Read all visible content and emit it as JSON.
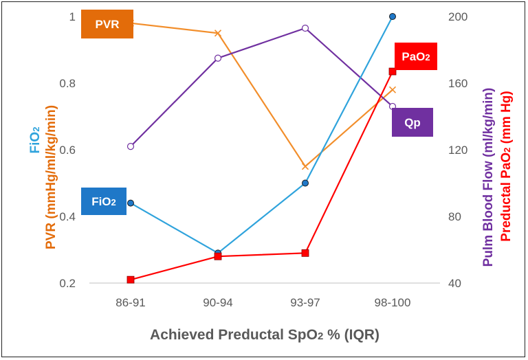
{
  "chart_data": {
    "type": "line",
    "categories": [
      "86-91",
      "90-94",
      "93-97",
      "98-100"
    ],
    "xlabel_parts": [
      "Achieved Preductal SpO",
      "2",
      " % (IQR)"
    ],
    "left_axis": {
      "ylim": [
        0.2,
        1.0
      ],
      "ticks": [
        "0.2",
        "0.4",
        "0.6",
        "0.8",
        "1"
      ],
      "label_fio2": [
        "FiO",
        "2"
      ],
      "label_pvr": "PVR (mmHg/ml/kg/min)"
    },
    "right_axis": {
      "ylim": [
        40,
        200
      ],
      "ticks": [
        "40",
        "80",
        "120",
        "160",
        "200"
      ],
      "label_qp": "Pulm Blood Flow (ml/kg/min)",
      "label_pao2": [
        "Preductal PaO",
        "2",
        " (mm Hg)"
      ]
    },
    "series": [
      {
        "name": "PVR",
        "label_parts": [
          "PVR"
        ],
        "axis": "left",
        "values": [
          0.98,
          0.95,
          0.55,
          0.78
        ],
        "color": "#F28E2B",
        "marker": "x"
      },
      {
        "name": "Qp",
        "label_parts": [
          "Qp"
        ],
        "axis": "right",
        "values": [
          122,
          175,
          193,
          146
        ],
        "color": "#7030A0",
        "marker": "open-circle"
      },
      {
        "name": "FiO2",
        "label_parts": [
          "FiO",
          "2"
        ],
        "axis": "left",
        "values": [
          0.44,
          0.29,
          0.5,
          1.0
        ],
        "color": "#2FA3DC",
        "marker": "circle"
      },
      {
        "name": "PaO2",
        "label_parts": [
          "PaO",
          "2"
        ],
        "axis": "right",
        "values": [
          42,
          56,
          58,
          167
        ],
        "color": "#FF0000",
        "marker": "square"
      }
    ],
    "label_boxes": {
      "PVR": "#E36C0A",
      "Qp": "#7030A0",
      "FiO2": "#1F78C8",
      "PaO2": "#FF0000"
    },
    "grid": false
  }
}
